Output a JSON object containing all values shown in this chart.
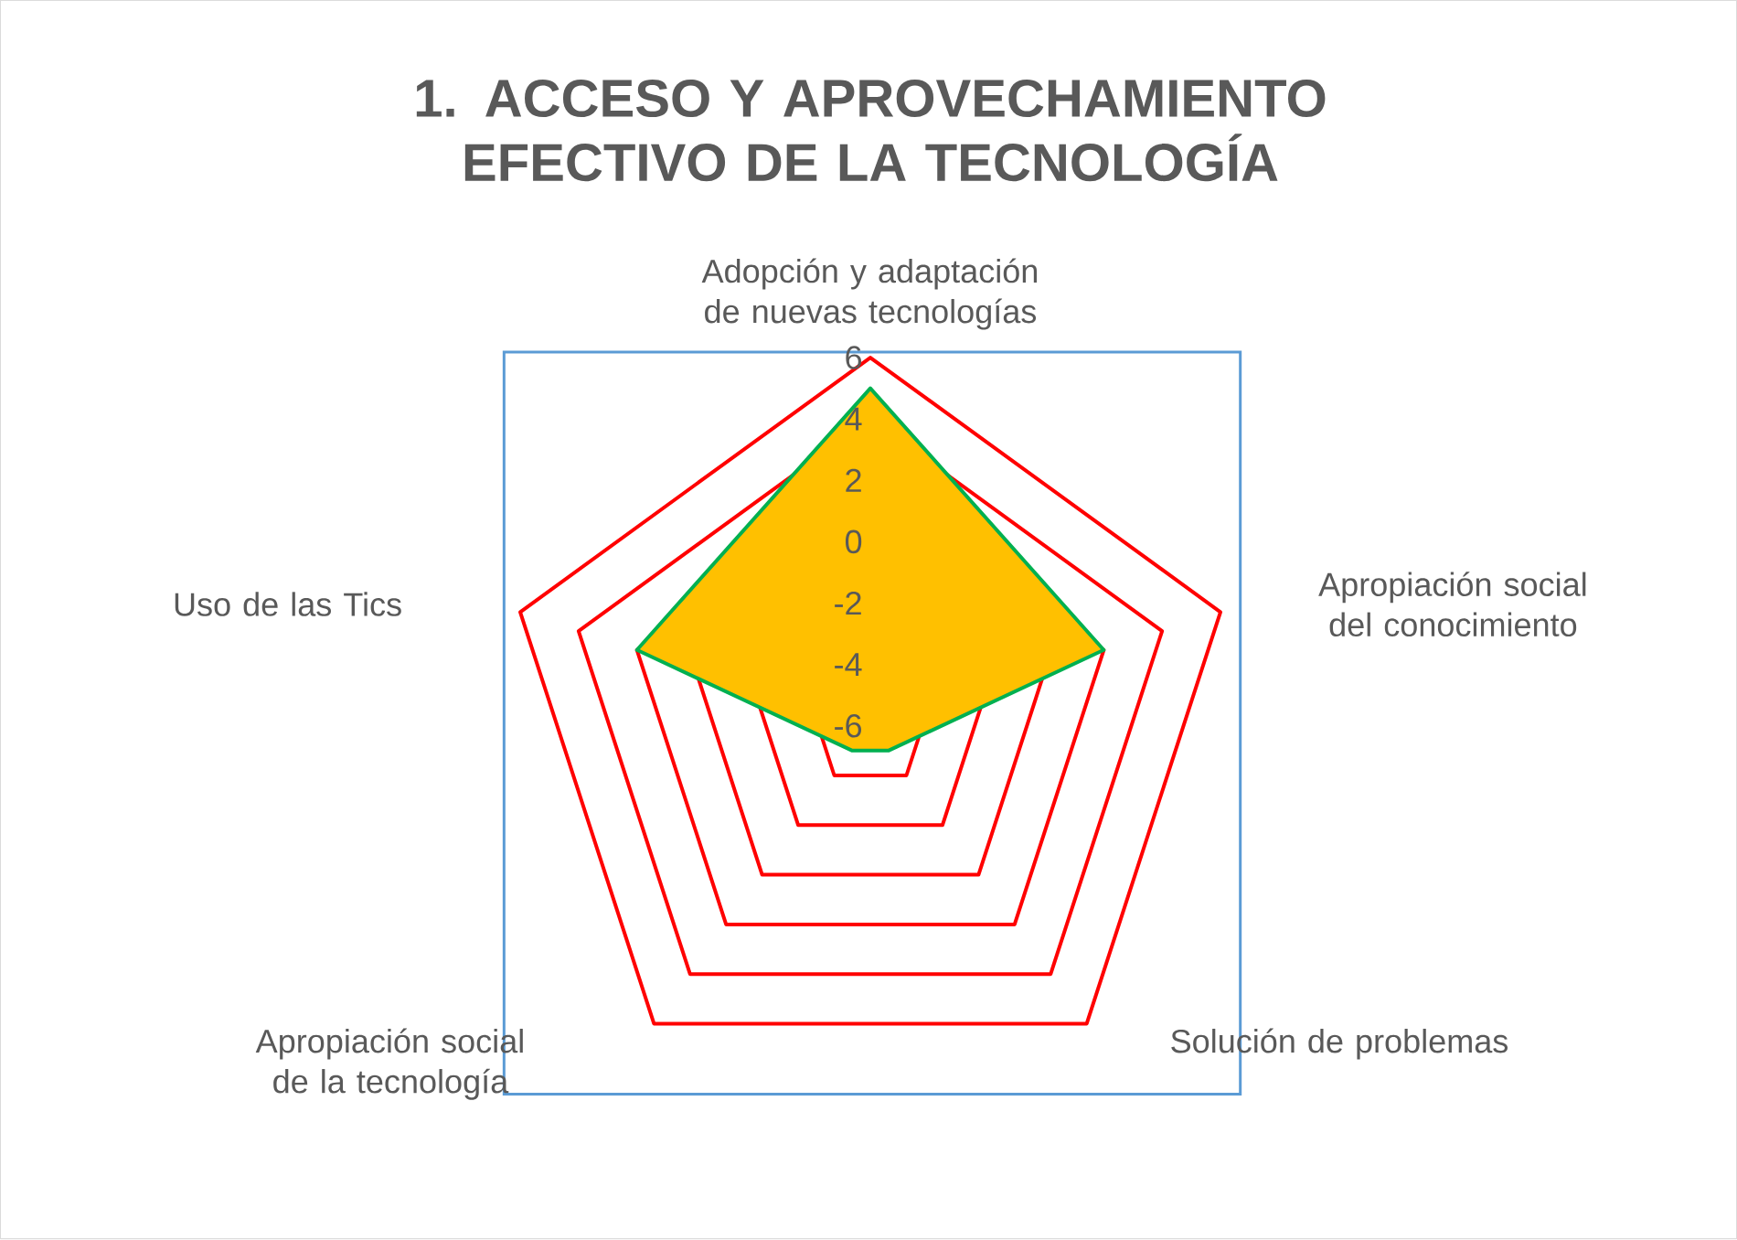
{
  "chart_data": {
    "type": "radar",
    "title": "1. ACCESO Y APROVECHAMIENTO EFECTIVO DE LA TECNOLOGÍA",
    "categories": [
      "Adopción y adaptación de nuevas tecnologías",
      "Apropiación social del conocimiento",
      "Solución de problemas",
      "Apropiación social de la tecnología",
      "Uso de las Tics"
    ],
    "series": [
      {
        "color": "#ffc000",
        "values": [
          5,
          2,
          -5,
          -5,
          2
        ]
      }
    ],
    "ylim": [
      -6,
      6
    ],
    "yticks": [
      -6,
      -4,
      -2,
      0,
      2,
      4,
      6
    ],
    "grid": true
  }
}
